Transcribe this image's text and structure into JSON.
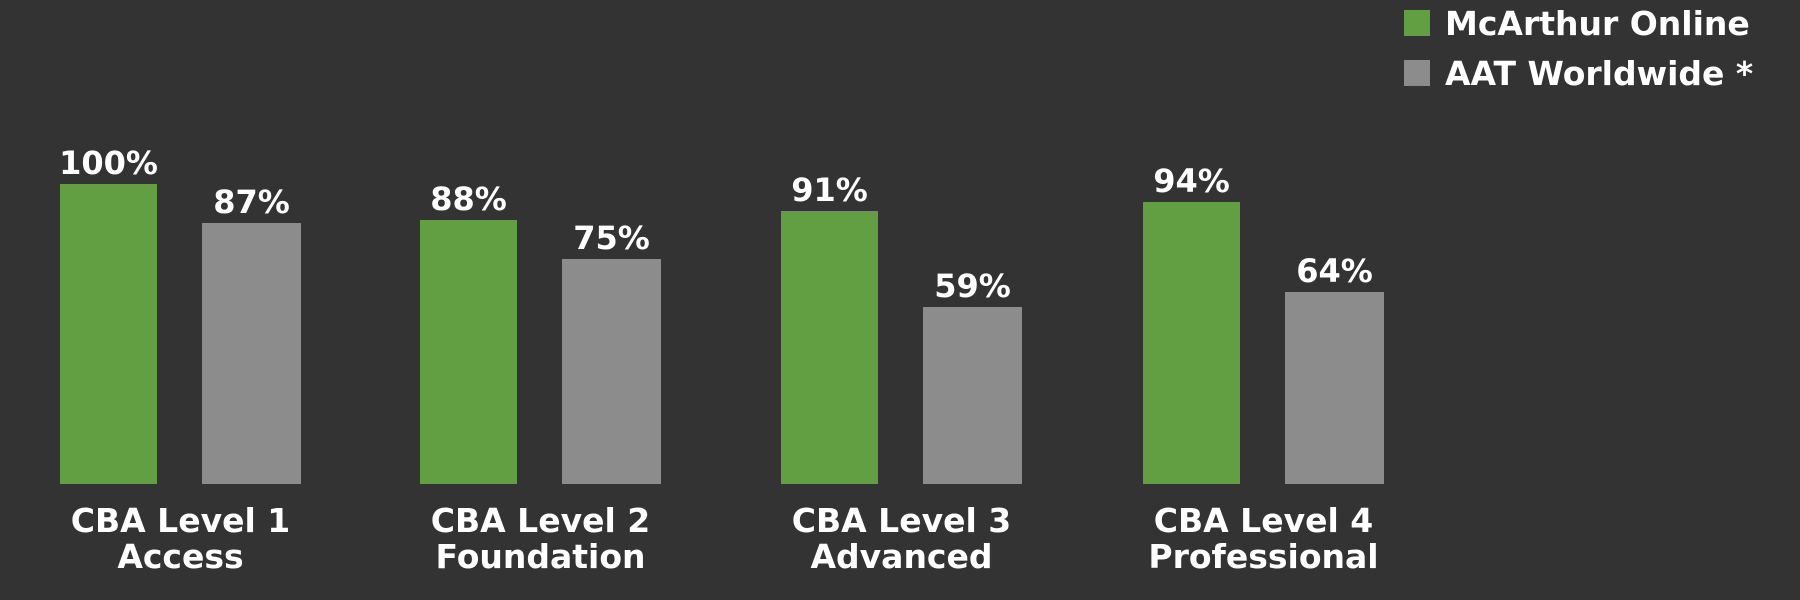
{
  "chart_data": {
    "type": "bar",
    "title": "",
    "xlabel": "",
    "ylabel": "",
    "ylim": [
      0,
      100
    ],
    "grid": false,
    "legend_position": "top-right",
    "categories": [
      [
        "CBA Level 1",
        "Access"
      ],
      [
        "CBA Level 2",
        "Foundation"
      ],
      [
        "CBA Level 3",
        "Advanced"
      ],
      [
        "CBA Level 4",
        "Professional"
      ]
    ],
    "series": [
      {
        "name": "McArthur Online",
        "color": "#629f42",
        "values": [
          100,
          88,
          91,
          94
        ],
        "labels": [
          "100%",
          "88%",
          "91%",
          "94%"
        ]
      },
      {
        "name": "AAT Worldwide *",
        "color": "#8c8c8c",
        "values": [
          87,
          75,
          59,
          64
        ],
        "labels": [
          "87%",
          "75%",
          "59%",
          "64%"
        ]
      }
    ]
  }
}
